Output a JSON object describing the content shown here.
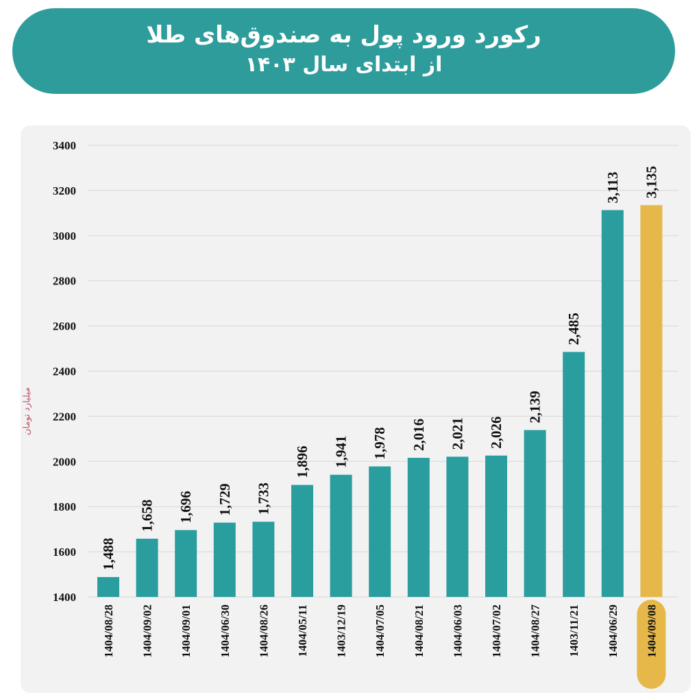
{
  "title": {
    "line1": "رکورد ورود پول به صندوق‌های طلا",
    "line2": "از ابتدای سال ۱۴۰۳"
  },
  "colors": {
    "bar": "#2a9d9f",
    "highlight": "#e6b84a",
    "title_bg": "#2f9c9c",
    "ylabel": "#c0506a"
  },
  "chart_data": {
    "type": "bar",
    "title": "رکورد ورود پول به صندوق‌های طلا از ابتدای سال ۱۴۰۳",
    "ylabel": "میلیارد تومان",
    "xlabel": "",
    "ylim": [
      1400,
      3400
    ],
    "yticks": [
      1400,
      1600,
      1800,
      2000,
      2200,
      2400,
      2600,
      2800,
      3000,
      3200,
      3400
    ],
    "grid": true,
    "categories": [
      "1404/08/28",
      "1404/09/02",
      "1404/09/01",
      "1404/06/30",
      "1404/08/26",
      "1404/05/11",
      "1403/12/19",
      "1404/07/05",
      "1404/08/21",
      "1404/06/03",
      "1404/07/02",
      "1404/08/27",
      "1403/11/21",
      "1404/06/29",
      "1404/09/08"
    ],
    "values": [
      1488,
      1658,
      1696,
      1729,
      1733,
      1896,
      1941,
      1978,
      2016,
      2021,
      2026,
      2139,
      2485,
      3113,
      3135
    ],
    "data_labels": [
      "1,488",
      "1,658",
      "1,696",
      "1,729",
      "1,733",
      "1,896",
      "1,941",
      "1,978",
      "2,016",
      "2,021",
      "2,026",
      "2,139",
      "2,485",
      "3,113",
      "3,135"
    ],
    "highlighted_category": "1404/09/08"
  }
}
